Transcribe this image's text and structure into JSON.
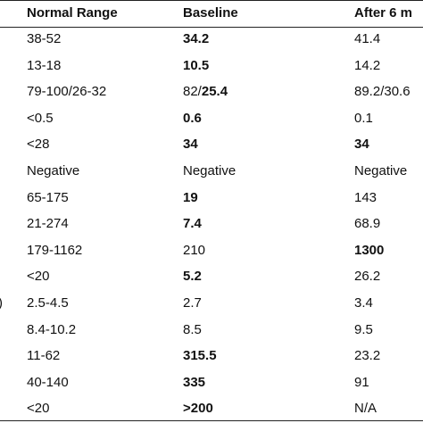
{
  "table": {
    "header": [
      "Normal Range",
      "Baseline",
      "After 6 m"
    ],
    "rows": [
      {
        "cells": [
          "38-52",
          "34.2",
          "41.4"
        ],
        "bold": [
          false,
          true,
          false
        ]
      },
      {
        "cells": [
          "13-18",
          "10.5",
          "14.2"
        ],
        "bold": [
          false,
          true,
          false
        ]
      },
      {
        "cells": [
          "79-100/26-32",
          [
            "82/",
            "25.4"
          ],
          "89.2/30.6"
        ],
        "bold": [
          false,
          [
            false,
            true
          ],
          false
        ]
      },
      {
        "cells": [
          "<0.5",
          "0.6",
          "0.1"
        ],
        "bold": [
          false,
          true,
          false
        ]
      },
      {
        "cells": [
          "<28",
          "34",
          "34"
        ],
        "bold": [
          false,
          true,
          true
        ]
      },
      {
        "cells": [
          "Negative",
          "Negative",
          "Negative"
        ],
        "bold": [
          false,
          false,
          false
        ]
      },
      {
        "cells": [
          "65-175",
          "19",
          "143"
        ],
        "bold": [
          false,
          true,
          false
        ]
      },
      {
        "cells": [
          "21-274",
          "7.4",
          "68.9"
        ],
        "bold": [
          false,
          true,
          false
        ]
      },
      {
        "cells": [
          "179-1162",
          "210",
          "1300"
        ],
        "bold": [
          false,
          false,
          true
        ]
      },
      {
        "cells": [
          "<20",
          "5.2",
          "26.2"
        ],
        "bold": [
          false,
          true,
          false
        ]
      },
      {
        "label": ")",
        "cells": [
          "2.5-4.5",
          "2.7",
          "3.4"
        ],
        "bold": [
          false,
          false,
          false
        ]
      },
      {
        "cells": [
          "8.4-10.2",
          "8.5",
          "9.5"
        ],
        "bold": [
          false,
          false,
          false
        ]
      },
      {
        "cells": [
          "11-62",
          "315.5",
          "23.2"
        ],
        "bold": [
          false,
          true,
          false
        ]
      },
      {
        "cells": [
          "40-140",
          "335",
          "91"
        ],
        "bold": [
          false,
          true,
          false
        ]
      },
      {
        "cells": [
          "<20",
          ">200",
          "N/A"
        ],
        "bold": [
          false,
          true,
          false
        ]
      }
    ]
  }
}
